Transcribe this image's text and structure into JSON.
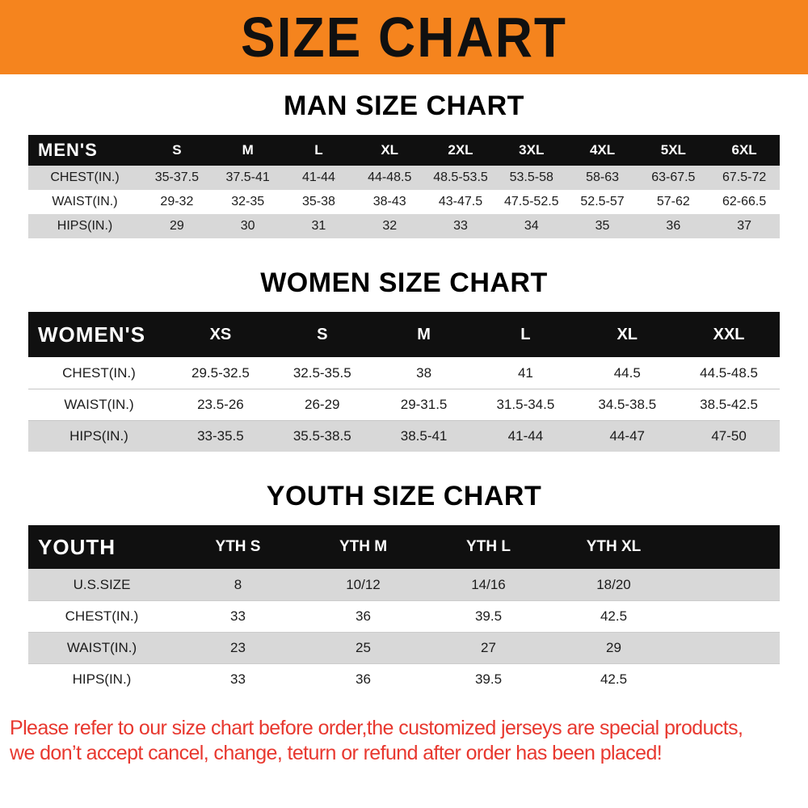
{
  "banner": {
    "title": "SIZE CHART",
    "bg_color": "#f5841e"
  },
  "sections": [
    {
      "key": "men",
      "heading": "MAN SIZE CHART",
      "corner_label": "MEN'S",
      "columns": [
        "S",
        "M",
        "L",
        "XL",
        "2XL",
        "3XL",
        "4XL",
        "5XL",
        "6XL"
      ],
      "rows": [
        {
          "label": "CHEST(IN.)",
          "shade": "gray",
          "values": [
            "35-37.5",
            "37.5-41",
            "41-44",
            "44-48.5",
            "48.5-53.5",
            "53.5-58",
            "58-63",
            "63-67.5",
            "67.5-72"
          ]
        },
        {
          "label": "WAIST(IN.)",
          "shade": "white",
          "values": [
            "29-32",
            "32-35",
            "35-38",
            "38-43",
            "43-47.5",
            "47.5-52.5",
            "52.5-57",
            "57-62",
            "62-66.5"
          ]
        },
        {
          "label": "HIPS(IN.)",
          "shade": "gray",
          "values": [
            "29",
            "30",
            "31",
            "32",
            "33",
            "34",
            "35",
            "36",
            "37"
          ]
        }
      ]
    },
    {
      "key": "women",
      "heading": "WOMEN SIZE CHART",
      "corner_label": "WOMEN'S",
      "columns": [
        "XS",
        "S",
        "M",
        "L",
        "XL",
        "XXL"
      ],
      "rows": [
        {
          "label": "CHEST(IN.)",
          "shade": "white",
          "values": [
            "29.5-32.5",
            "32.5-35.5",
            "38",
            "41",
            "44.5",
            "44.5-48.5"
          ]
        },
        {
          "label": "WAIST(IN.)",
          "shade": "white",
          "values": [
            "23.5-26",
            "26-29",
            "29-31.5",
            "31.5-34.5",
            "34.5-38.5",
            "38.5-42.5"
          ]
        },
        {
          "label": "HIPS(IN.)",
          "shade": "gray",
          "values": [
            "33-35.5",
            "35.5-38.5",
            "38.5-41",
            "41-44",
            "44-47",
            "47-50"
          ]
        }
      ]
    },
    {
      "key": "youth",
      "heading": "YOUTH SIZE CHART",
      "corner_label": "YOUTH",
      "columns": [
        "YTH S",
        "YTH M",
        "YTH L",
        "YTH XL"
      ],
      "rows": [
        {
          "label": "U.S.SIZE",
          "shade": "gray",
          "values": [
            "8",
            "10/12",
            "14/16",
            "18/20"
          ]
        },
        {
          "label": "CHEST(IN.)",
          "shade": "white",
          "values": [
            "33",
            "36",
            "39.5",
            "42.5"
          ]
        },
        {
          "label": "WAIST(IN.)",
          "shade": "gray",
          "values": [
            "23",
            "25",
            "27",
            "29"
          ]
        },
        {
          "label": "HIPS(IN.)",
          "shade": "white",
          "values": [
            "33",
            "36",
            "39.5",
            "42.5"
          ]
        }
      ]
    }
  ],
  "footer": {
    "line1": "Please refer to our size chart before order,the customized jerseys are special products,",
    "line2": "we don’t accept cancel, change, teturn or refund after order has been placed!",
    "text_color": "#e8382f"
  },
  "colors": {
    "header_bg": "#101010",
    "row_gray": "#d8d8d8",
    "row_white": "#ffffff",
    "banner_orange": "#f5841e"
  }
}
